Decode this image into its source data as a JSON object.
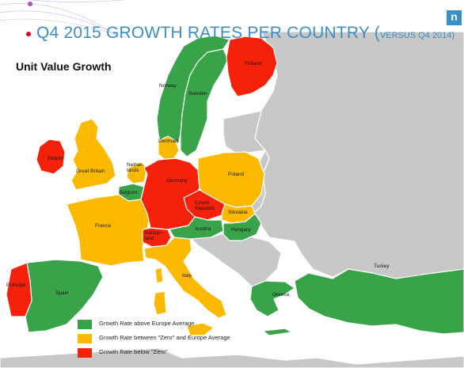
{
  "header": {
    "title": "Q4 2015 GROWTH RATES PER COUNTRY (",
    "subtitle": "VERSUS Q4 2014)",
    "logo": "n",
    "colors": {
      "title": "#3a8fc4",
      "dot": "#e2001a"
    }
  },
  "map": {
    "heading": "Unit Value Growth",
    "colors": {
      "above": "#38a348",
      "between": "#fbb900",
      "below": "#f5210b",
      "other": "#c8c8c8",
      "sea": "#ffffff"
    },
    "countries": {
      "norway": "Norway",
      "sweden": "Sweden",
      "finland": "Finland",
      "denmark": "Denmark",
      "ireland": "Ireland",
      "great_britain": "Great Britain",
      "netherlands": "Nether-\nlands",
      "belgium": "Belgium",
      "germany": "Germany",
      "poland": "Poland",
      "czech": "Czech\nRepublic",
      "slovakia": "Slovakia",
      "austria": "Austria",
      "hungary": "Hungary",
      "switzerland": "Switzer-\nland",
      "france": "France",
      "italy": "Italy",
      "spain": "Spain",
      "portugal": "Portugal",
      "greece": "Greece",
      "turkey": "Turkey"
    },
    "legend": [
      {
        "label": "Growth Rate above Europe Average",
        "color": "#38a348"
      },
      {
        "label": "Growth Rate between \"Zero\" and Europe Average",
        "color": "#fbb900"
      },
      {
        "label": "Growth Rate below \"Zero\"",
        "color": "#f5210b"
      }
    ]
  }
}
